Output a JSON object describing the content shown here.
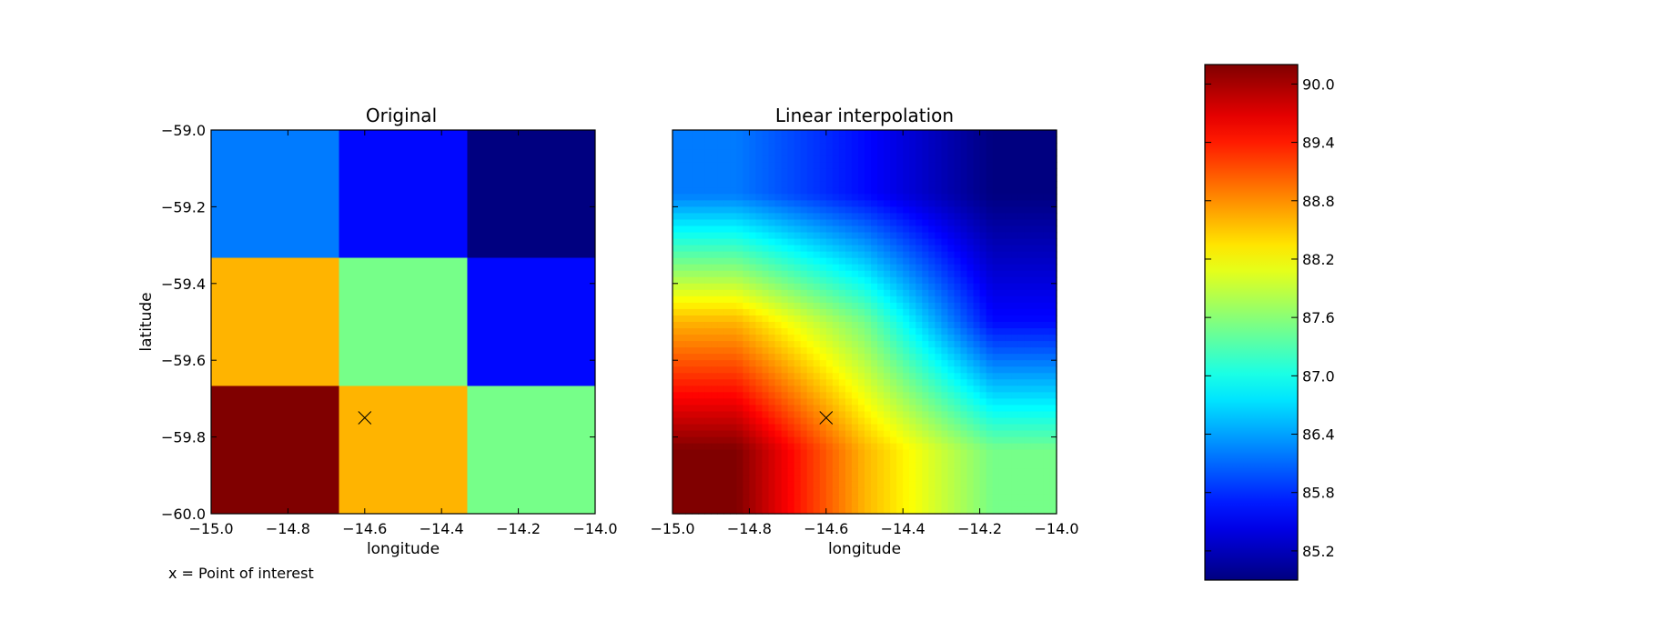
{
  "chart_data": [
    {
      "type": "heatmap",
      "title": "Original",
      "xlabel": "longitude",
      "ylabel": "latitude",
      "xlim": [
        -15.0,
        -14.0
      ],
      "ylim": [
        -60.0,
        -59.0
      ],
      "xticks": [
        -15.0,
        -14.8,
        -14.6,
        -14.4,
        -14.2,
        -14.0
      ],
      "yticks": [
        -59.0,
        -59.2,
        -59.4,
        -59.6,
        -59.8,
        -60.0
      ],
      "xtick_labels": [
        "−15.0",
        "−14.8",
        "−14.6",
        "−14.4",
        "−14.2",
        "−14.0"
      ],
      "ytick_labels": [
        "−59.0",
        "−59.2",
        "−59.4",
        "−59.6",
        "−59.8",
        "−60.0"
      ],
      "grid_x_edges": [
        -15.0,
        -14.667,
        -14.333,
        -14.0
      ],
      "grid_y_edges": [
        -59.0,
        -59.333,
        -59.667,
        -60.0
      ],
      "values": [
        [
          86.2,
          85.6,
          84.9
        ],
        [
          88.6,
          87.5,
          85.6
        ],
        [
          90.2,
          88.6,
          87.5
        ]
      ],
      "point_of_interest": {
        "lon": -14.6,
        "lat": -59.75
      }
    },
    {
      "type": "heatmap",
      "title": "Linear interpolation",
      "xlabel": "longitude",
      "ylabel": "",
      "interpolation": "linear",
      "xlim": [
        -15.0,
        -14.0
      ],
      "ylim": [
        -60.0,
        -59.0
      ],
      "xticks": [
        -15.0,
        -14.8,
        -14.6,
        -14.4,
        -14.2,
        -14.0
      ],
      "xtick_labels": [
        "−15.0",
        "−14.8",
        "−14.6",
        "−14.4",
        "−14.2",
        "−14.0"
      ],
      "ytick_labels_shown": false,
      "values": [
        [
          86.2,
          85.6,
          84.9
        ],
        [
          88.6,
          87.5,
          85.6
        ],
        [
          90.2,
          88.6,
          87.5
        ]
      ],
      "point_of_interest": {
        "lon": -14.6,
        "lat": -59.75
      }
    }
  ],
  "colorbar": {
    "colormap": "jet",
    "vmin": 84.9,
    "vmax": 90.2,
    "ticks": [
      85.2,
      85.8,
      86.4,
      87.0,
      87.6,
      88.2,
      88.8,
      89.4,
      90.0
    ],
    "tick_labels": [
      "85.2",
      "85.8",
      "86.4",
      "87.0",
      "87.6",
      "88.2",
      "88.8",
      "89.4",
      "90.0"
    ]
  },
  "note": "x = Point of interest"
}
